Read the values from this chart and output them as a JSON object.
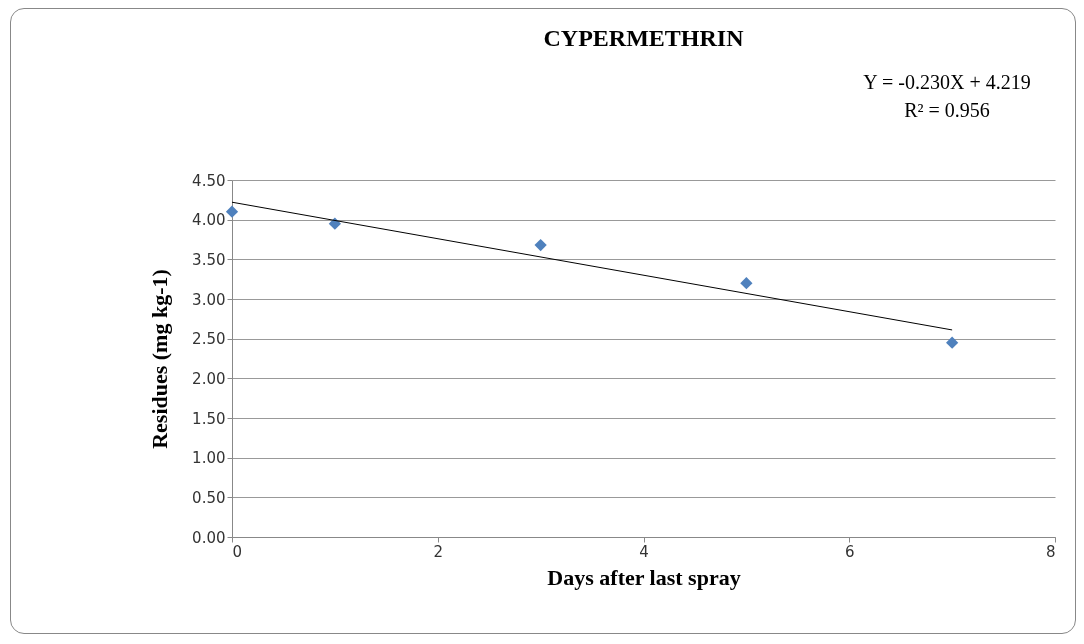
{
  "chart_data": {
    "type": "scatter",
    "title": "CYPERMETHRIN",
    "xlabel": "Days after last spray",
    "ylabel": "Residues (mg kg-1)",
    "annotations": [
      "Y = -0.230X + 4.219",
      "R² = 0.956"
    ],
    "xlim": [
      0,
      8
    ],
    "xticks": [
      0,
      2,
      4,
      6,
      8
    ],
    "ylim": [
      0,
      4.5
    ],
    "yticks": [
      {
        "value": 0,
        "label": "0.00"
      },
      {
        "value": 0.5,
        "label": "0.50"
      },
      {
        "value": 1,
        "label": "1.00"
      },
      {
        "value": 1.5,
        "label": "1.50"
      },
      {
        "value": 2,
        "label": "2.00"
      },
      {
        "value": 2.5,
        "label": "2.50"
      },
      {
        "value": 3,
        "label": "3.00"
      },
      {
        "value": 3.5,
        "label": "3.50"
      },
      {
        "value": 4,
        "label": "4.00"
      },
      {
        "value": 4.5,
        "label": "4.50"
      }
    ],
    "grid": "y",
    "series": [
      {
        "type": "scatter",
        "color": "#4f81bd",
        "marker": "diamond",
        "x": [
          0,
          1,
          3,
          5,
          7
        ],
        "values": [
          4.1,
          3.95,
          3.68,
          3.2,
          2.45
        ]
      },
      {
        "type": "line",
        "color": "#000000",
        "x": [
          0,
          7
        ],
        "values": [
          4.22,
          2.61
        ]
      }
    ]
  }
}
